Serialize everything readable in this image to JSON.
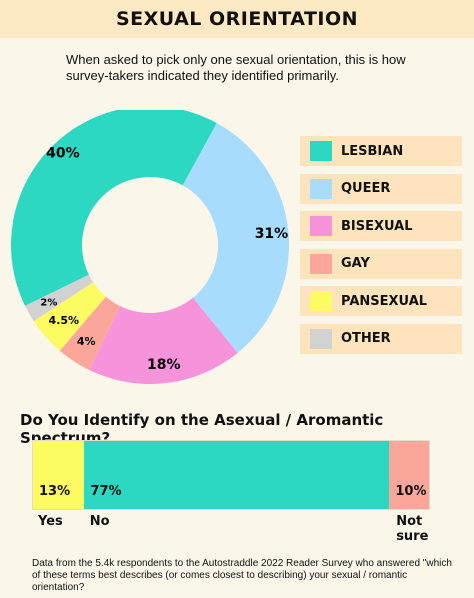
{
  "title": "SEXUAL ORIENTATION",
  "subtitle": "When asked to pick only one sexual orientation, this is how survey-takers indicated they identified primarily.",
  "chart_data": [
    {
      "type": "pie",
      "donut": true,
      "categories": [
        "LESBIAN",
        "QUEER",
        "BISEXUAL",
        "GAY",
        "PANSEXUAL",
        "OTHER"
      ],
      "values": [
        40,
        31,
        18,
        4,
        4.5,
        2
      ],
      "labels": [
        "40%",
        "31%",
        "18%",
        "4%",
        "4.5%",
        "2%"
      ],
      "colors": [
        "#2dd8c3",
        "#a8dcfc",
        "#f693db",
        "#fba69a",
        "#fdfb62",
        "#d2d2d2"
      ],
      "legend_position": "right"
    },
    {
      "type": "bar",
      "stacked": true,
      "orientation": "horizontal",
      "title": "Do You Identify on the Asexual / Aromantic Spectrum?",
      "categories": [
        "Yes",
        "No",
        "Not sure"
      ],
      "values": [
        13,
        77,
        10
      ],
      "labels": [
        "13%",
        "77%",
        "10%"
      ],
      "colors": [
        "#fdfb62",
        "#2dd8c3",
        "#fba69a"
      ]
    }
  ],
  "footnote": "Data from the 5.4k respondents to the Autostraddle 2022 Reader Survey who answered \"which of these terms best describes (or comes closest to describing) your sexual / romantic orientation?"
}
